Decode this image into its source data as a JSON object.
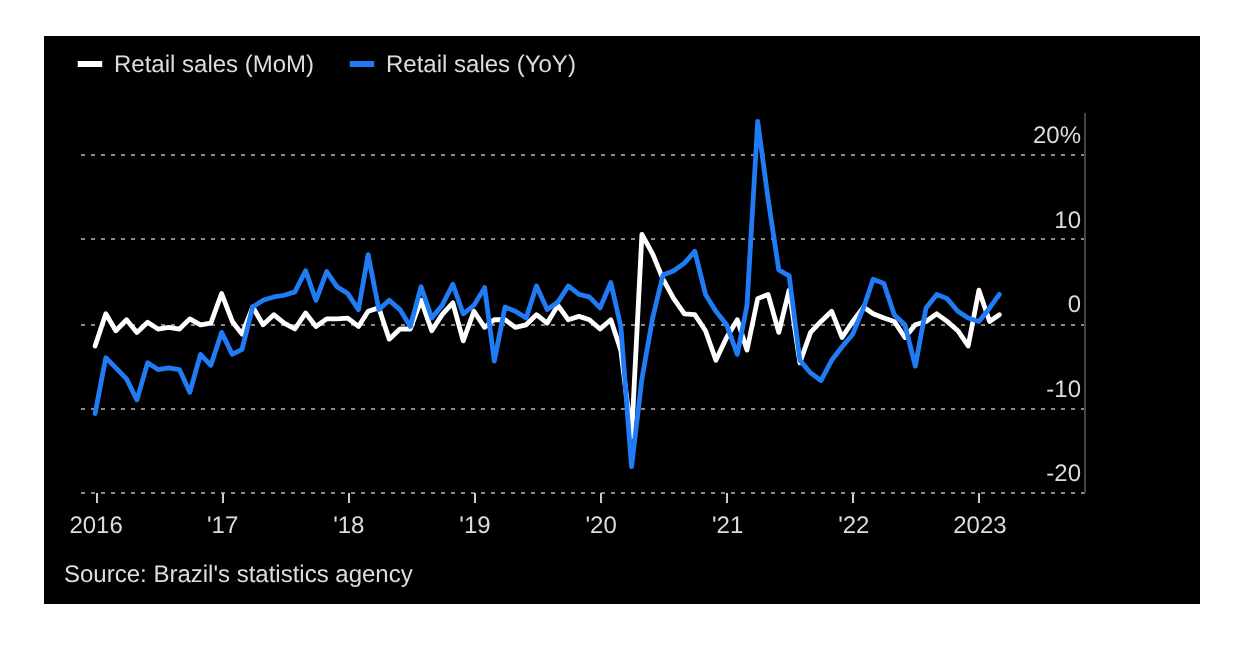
{
  "chart_data": {
    "type": "line",
    "x": [
      "2016-01",
      "2016-02",
      "2016-03",
      "2016-04",
      "2016-05",
      "2016-06",
      "2016-07",
      "2016-08",
      "2016-09",
      "2016-10",
      "2016-11",
      "2016-12",
      "2017-01",
      "2017-02",
      "2017-03",
      "2017-04",
      "2017-05",
      "2017-06",
      "2017-07",
      "2017-08",
      "2017-09",
      "2017-10",
      "2017-11",
      "2017-12",
      "2018-01",
      "2018-02",
      "2018-03",
      "2018-04",
      "2018-05",
      "2018-06",
      "2018-07",
      "2018-08",
      "2018-09",
      "2018-10",
      "2018-11",
      "2018-12",
      "2019-01",
      "2019-02",
      "2019-03",
      "2019-04",
      "2019-05",
      "2019-06",
      "2019-07",
      "2019-08",
      "2019-09",
      "2019-10",
      "2019-11",
      "2019-12",
      "2020-01",
      "2020-02",
      "2020-03",
      "2020-04",
      "2020-05",
      "2020-06",
      "2020-07",
      "2020-08",
      "2020-09",
      "2020-10",
      "2020-11",
      "2020-12",
      "2021-01",
      "2021-02",
      "2021-03",
      "2021-04",
      "2021-05",
      "2021-06",
      "2021-07",
      "2021-08",
      "2021-09",
      "2021-10",
      "2021-11",
      "2021-12",
      "2022-01",
      "2022-02",
      "2022-03",
      "2022-04",
      "2022-05",
      "2022-06",
      "2022-07",
      "2022-08",
      "2022-09",
      "2022-10",
      "2022-11",
      "2022-12",
      "2023-01",
      "2023-02",
      "2023-03"
    ],
    "series": [
      {
        "name": "Retail sales (MoM)",
        "color": "#ffffff",
        "values": [
          -2.7,
          1.1,
          -0.9,
          0.4,
          -1.1,
          0.1,
          -0.7,
          -0.5,
          -0.7,
          0.5,
          -0.2,
          0,
          3.5,
          0.2,
          -1.3,
          1.9,
          -0.2,
          1.0,
          0,
          -0.7,
          1.2,
          -0.4,
          0.5,
          0.5,
          0.6,
          -0.4,
          1.4,
          1.8,
          -1.9,
          -0.7,
          -0.7,
          2.7,
          -0.9,
          1.0,
          2.4,
          -2.1,
          1.4,
          -0.5,
          0.4,
          0.4,
          -0.5,
          -0.2,
          1.0,
          0,
          2.1,
          0.4,
          0.8,
          0.4,
          -0.7,
          0.4,
          -3.2,
          -13.5,
          10.5,
          8.2,
          5.2,
          2.9,
          1.1,
          1.0,
          -0.9,
          -4.4,
          -1.7,
          0.4,
          -3.2,
          2.9,
          3.4,
          -1.1,
          3.9,
          -4.7,
          -1.1,
          0.2,
          1.4,
          -1.7,
          0.2,
          1.9,
          1.1,
          0.6,
          0.2,
          -1.7,
          -0.2,
          0.2,
          1.1,
          0.2,
          -0.9,
          -2.7,
          3.9,
          0.2,
          1.0
        ]
      },
      {
        "name": "Retail sales (YoY)",
        "color": "#1f7cf4",
        "values": [
          -10.7,
          -4.1,
          -5.3,
          -6.6,
          -9.1,
          -4.7,
          -5.5,
          -5.3,
          -5.5,
          -8.2,
          -3.7,
          -5.0,
          -1.1,
          -3.7,
          -3.1,
          1.9,
          2.7,
          3.1,
          3.3,
          3.7,
          6.2,
          2.7,
          6.1,
          4.3,
          3.5,
          1.6,
          8.1,
          1.6,
          2.7,
          1.6,
          -0.4,
          4.3,
          0.6,
          2.1,
          4.6,
          1.1,
          2.1,
          4.2,
          -4.5,
          1.9,
          1.4,
          0.6,
          4.4,
          1.6,
          2.5,
          4.4,
          3.4,
          3.1,
          1.8,
          4.8,
          -0.4,
          -17,
          -6.6,
          0.6,
          5.7,
          6.2,
          7.1,
          8.5,
          3.4,
          1.4,
          -0.2,
          -3.7,
          2.1,
          23.9,
          14.7,
          6.3,
          5.6,
          -4.4,
          -5.9,
          -6.8,
          -4.4,
          -2.8,
          -1.3,
          1.8,
          5.2,
          4.7,
          1.0,
          -0.2,
          -5.1,
          1.8,
          3.4,
          2.9,
          1.4,
          0.6,
          0.2,
          1.8,
          3.4
        ]
      }
    ],
    "xlim": [
      "2015-11",
      "2023-11"
    ],
    "xticks": [
      {
        "value": "2016-01",
        "label": "2016"
      },
      {
        "value": "2017-01",
        "label": "'17"
      },
      {
        "value": "2018-01",
        "label": "'18"
      },
      {
        "value": "2019-01",
        "label": "'19"
      },
      {
        "value": "2020-01",
        "label": "'20"
      },
      {
        "value": "2021-01",
        "label": "'21"
      },
      {
        "value": "2022-01",
        "label": "'22"
      },
      {
        "value": "2023-01",
        "label": "2023"
      }
    ],
    "ylim": [
      -20,
      25
    ],
    "yticks": [
      -20,
      -10,
      0,
      10,
      {
        "value": 20,
        "label": "20%"
      }
    ],
    "grid": "y",
    "legend": "top left",
    "line_style": "solid",
    "annotations": [
      "Source: Brazil's statistics agency"
    ]
  }
}
